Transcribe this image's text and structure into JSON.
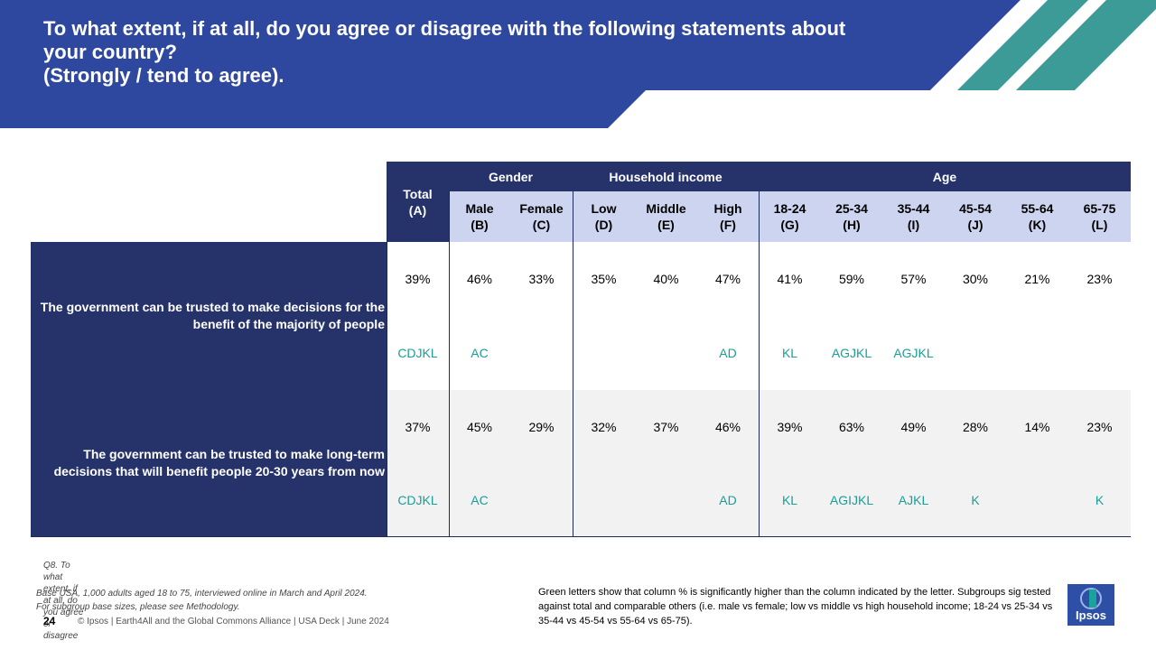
{
  "header": {
    "title_line1": "To what extent, if at all, do you agree or disagree with the following statements about",
    "title_line2": "your country?",
    "title_line3": "(Strongly / tend to agree)."
  },
  "table": {
    "total_header": "Total\n(A)",
    "groups": {
      "gender": "Gender",
      "income": "Household income",
      "age": "Age"
    },
    "columns": [
      "Male\n(B)",
      "Female\n(C)",
      "Low\n(D)",
      "Middle\n(E)",
      "High\n(F)",
      "18-24\n(G)",
      "25-34\n(H)",
      "35-44\n(I)",
      "45-54\n(J)",
      "55-64\n(K)",
      "65-75\n(L)"
    ],
    "rows": [
      {
        "label": "The government can be trusted to make decisions for the benefit of the majority of people",
        "values": [
          "39%",
          "46%",
          "33%",
          "35%",
          "40%",
          "47%",
          "41%",
          "59%",
          "57%",
          "30%",
          "21%",
          "23%"
        ],
        "sig": [
          "CDJKL",
          "AC",
          "",
          "",
          "",
          "AD",
          "KL",
          "AGJKL",
          "AGJKL",
          "",
          "",
          ""
        ]
      },
      {
        "label": "The government can be trusted to make long-term decisions that will benefit people 20-30 years from now",
        "values": [
          "37%",
          "45%",
          "29%",
          "32%",
          "37%",
          "46%",
          "39%",
          "63%",
          "49%",
          "28%",
          "14%",
          "23%"
        ],
        "sig": [
          "CDJKL",
          "AC",
          "",
          "",
          "",
          "AD",
          "KL",
          "AGIJKL",
          "AJKL",
          "K",
          "",
          "K"
        ]
      }
    ]
  },
  "footer": {
    "question": "Q8. To what extent, if at all, do you agree or disagree",
    "base_line1": "Base USA, 1,000 adults aged 18 to 75, interviewed online in March and April 2024.",
    "base_line2": "For subgroup base sizes, please see Methodology.",
    "page_number": "24",
    "copyright": "© Ipsos | Earth4All and the Global Commons Alliance | USA Deck | June 2024",
    "note": "Green letters show that column % is significantly higher than the column indicated by the letter. Subgroups sig tested against total and comparable others (i.e. male vs female; low vs middle vs high household income; 18-24 vs 25-34 vs 35-44 vs 45-54 vs 55-64 vs 65-75).",
    "logo_text": "Ipsos"
  },
  "colors": {
    "banner_blue": "#2e48a0",
    "dark_navy": "#26336b",
    "light_header": "#ccd4ef",
    "sig_green": "#1a9e96",
    "stripe_teal": "#3d9b97",
    "row2_bg": "#f2f2f2"
  }
}
